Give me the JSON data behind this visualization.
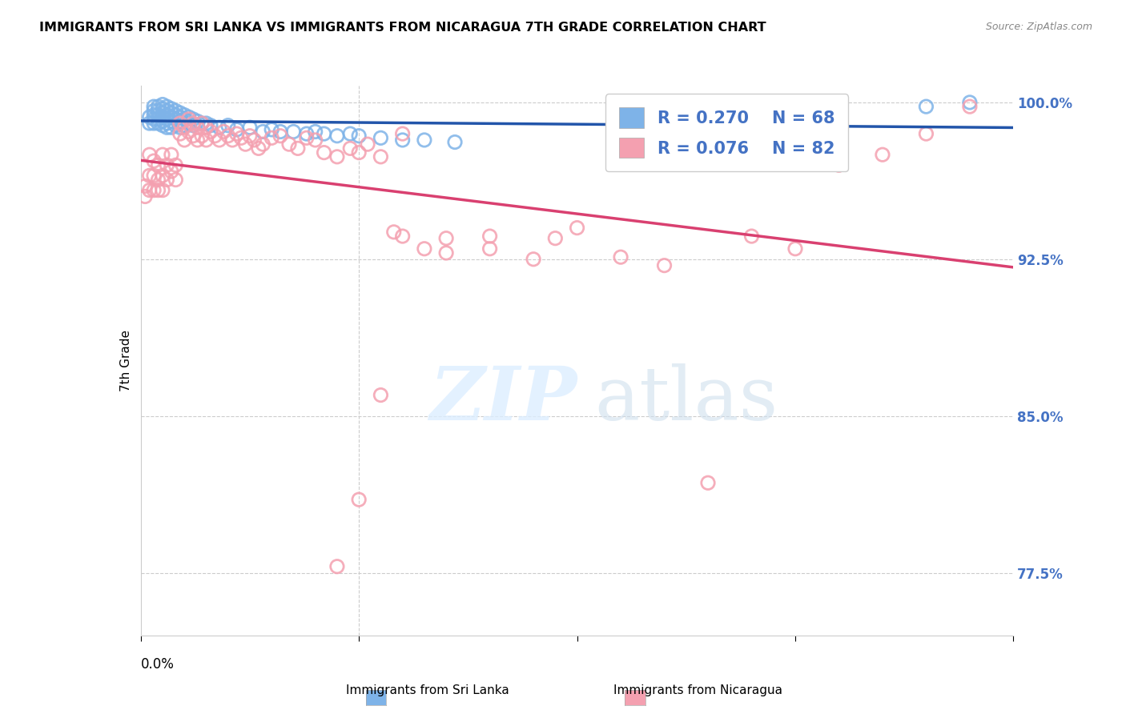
{
  "title": "IMMIGRANTS FROM SRI LANKA VS IMMIGRANTS FROM NICARAGUA 7TH GRADE CORRELATION CHART",
  "source": "Source: ZipAtlas.com",
  "ylabel": "7th Grade",
  "color_sri_lanka": "#7EB3E8",
  "color_sri_edge": "#6AA0D8",
  "color_nicaragua": "#F4A0B0",
  "color_nic_edge": "#E888A0",
  "color_line_sri": "#2255AA",
  "color_line_nic": "#D94070",
  "color_ytick": "#4472C4",
  "legend_label_sri": "Immigrants from Sri Lanka",
  "legend_label_nic": "Immigrants from Nicaragua",
  "x_min": 0.0,
  "x_max": 0.2,
  "y_min": 0.745,
  "y_max": 1.008,
  "y_ticks": [
    0.775,
    0.85,
    0.925,
    1.0
  ],
  "y_tick_labels": [
    "77.5%",
    "85.0%",
    "92.5%",
    "100.0%"
  ],
  "sri_lanka_x": [
    0.002,
    0.002,
    0.003,
    0.003,
    0.003,
    0.003,
    0.003,
    0.004,
    0.004,
    0.004,
    0.004,
    0.004,
    0.005,
    0.005,
    0.005,
    0.005,
    0.005,
    0.005,
    0.006,
    0.006,
    0.006,
    0.006,
    0.006,
    0.006,
    0.007,
    0.007,
    0.007,
    0.007,
    0.007,
    0.008,
    0.008,
    0.008,
    0.008,
    0.009,
    0.009,
    0.009,
    0.009,
    0.01,
    0.01,
    0.01,
    0.011,
    0.011,
    0.012,
    0.012,
    0.013,
    0.014,
    0.015,
    0.016,
    0.018,
    0.02,
    0.022,
    0.025,
    0.028,
    0.03,
    0.032,
    0.035,
    0.038,
    0.04,
    0.042,
    0.045,
    0.048,
    0.05,
    0.055,
    0.06,
    0.065,
    0.072,
    0.18,
    0.19
  ],
  "sri_lanka_y": [
    0.99,
    0.993,
    0.998,
    0.996,
    0.994,
    0.992,
    0.99,
    0.998,
    0.996,
    0.994,
    0.992,
    0.99,
    0.999,
    0.997,
    0.995,
    0.993,
    0.991,
    0.989,
    0.998,
    0.996,
    0.994,
    0.992,
    0.99,
    0.988,
    0.997,
    0.995,
    0.993,
    0.991,
    0.988,
    0.996,
    0.994,
    0.992,
    0.989,
    0.995,
    0.993,
    0.991,
    0.988,
    0.994,
    0.992,
    0.989,
    0.993,
    0.99,
    0.992,
    0.989,
    0.991,
    0.99,
    0.99,
    0.989,
    0.988,
    0.989,
    0.987,
    0.988,
    0.986,
    0.987,
    0.986,
    0.986,
    0.985,
    0.986,
    0.985,
    0.984,
    0.985,
    0.984,
    0.983,
    0.982,
    0.982,
    0.981,
    0.998,
    1.0
  ],
  "nicaragua_x": [
    0.001,
    0.001,
    0.002,
    0.002,
    0.002,
    0.003,
    0.003,
    0.003,
    0.004,
    0.004,
    0.004,
    0.005,
    0.005,
    0.005,
    0.006,
    0.006,
    0.007,
    0.007,
    0.008,
    0.008,
    0.009,
    0.009,
    0.01,
    0.01,
    0.011,
    0.011,
    0.012,
    0.012,
    0.013,
    0.013,
    0.014,
    0.014,
    0.015,
    0.015,
    0.016,
    0.017,
    0.018,
    0.019,
    0.02,
    0.021,
    0.022,
    0.023,
    0.024,
    0.025,
    0.026,
    0.027,
    0.028,
    0.03,
    0.032,
    0.034,
    0.036,
    0.038,
    0.04,
    0.042,
    0.045,
    0.048,
    0.05,
    0.052,
    0.055,
    0.058,
    0.06,
    0.065,
    0.07,
    0.08,
    0.09,
    0.095,
    0.1,
    0.11,
    0.12,
    0.13,
    0.14,
    0.15,
    0.16,
    0.17,
    0.18,
    0.19,
    0.07,
    0.08,
    0.06,
    0.055,
    0.05,
    0.045
  ],
  "nicaragua_y": [
    0.96,
    0.955,
    0.975,
    0.965,
    0.958,
    0.972,
    0.965,
    0.958,
    0.97,
    0.963,
    0.958,
    0.975,
    0.965,
    0.958,
    0.97,
    0.963,
    0.975,
    0.967,
    0.97,
    0.963,
    0.99,
    0.985,
    0.988,
    0.982,
    0.992,
    0.986,
    0.99,
    0.984,
    0.988,
    0.982,
    0.99,
    0.984,
    0.988,
    0.982,
    0.986,
    0.984,
    0.982,
    0.986,
    0.984,
    0.982,
    0.985,
    0.983,
    0.98,
    0.984,
    0.982,
    0.978,
    0.98,
    0.983,
    0.984,
    0.98,
    0.978,
    0.983,
    0.982,
    0.976,
    0.974,
    0.978,
    0.976,
    0.98,
    0.974,
    0.938,
    0.936,
    0.93,
    0.928,
    0.936,
    0.925,
    0.935,
    0.94,
    0.926,
    0.922,
    0.818,
    0.936,
    0.93,
    0.97,
    0.975,
    0.985,
    0.998,
    0.935,
    0.93,
    0.985,
    0.86,
    0.81,
    0.778
  ]
}
